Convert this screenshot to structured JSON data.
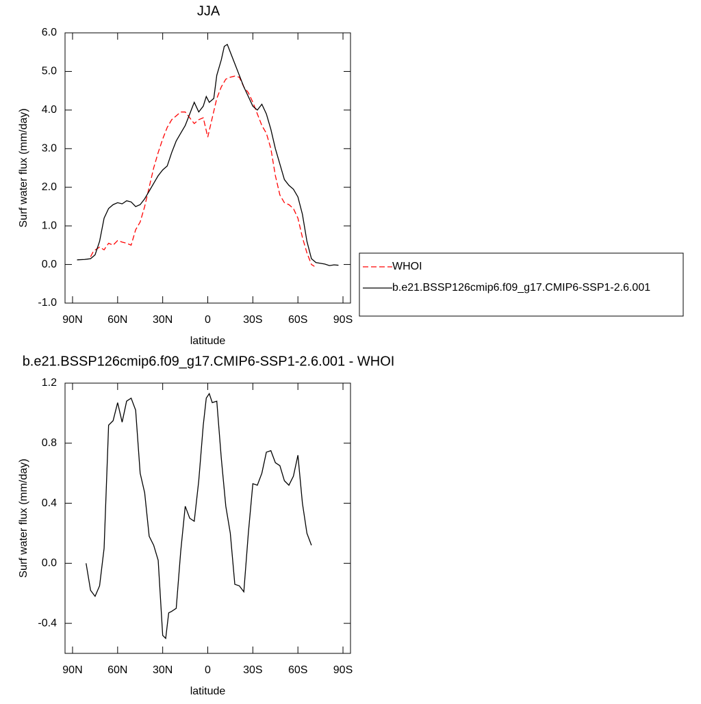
{
  "chart_data": [
    {
      "type": "line",
      "title": "JJA",
      "xlabel": "latitude",
      "ylabel": "Surf water flux (mm/day)",
      "xlim": [
        95,
        -95
      ],
      "ylim": [
        -1,
        6
      ],
      "xticks": [
        {
          "value": 90,
          "label": "90N"
        },
        {
          "value": 60,
          "label": "60N"
        },
        {
          "value": 30,
          "label": "30N"
        },
        0,
        {
          "value": -30,
          "label": "30S"
        },
        {
          "value": -60,
          "label": "60S"
        },
        {
          "value": -90,
          "label": "90S"
        }
      ],
      "yticks": [
        {
          "value": -1,
          "label": "-1.0"
        },
        {
          "value": 0,
          "label": "0.0"
        },
        {
          "value": 1,
          "label": "1.0"
        },
        {
          "value": 2,
          "label": "2.0"
        },
        {
          "value": 3,
          "label": "3.0"
        },
        {
          "value": 4,
          "label": "4.0"
        },
        {
          "value": 5,
          "label": "5.0"
        },
        {
          "value": 6,
          "label": "6.0"
        }
      ],
      "legend": "right",
      "series": [
        {
          "name": "WHOI",
          "color": "#ff0000",
          "dash": true,
          "x": [
            78,
            76,
            72,
            69,
            66,
            63,
            60,
            57,
            54,
            51,
            48,
            45,
            42,
            39,
            36,
            33,
            30,
            27,
            24,
            21,
            18,
            15,
            12,
            9,
            6,
            3,
            0,
            -3,
            -6,
            -9,
            -12,
            -15,
            -18,
            -21,
            -24,
            -27,
            -30,
            -33,
            -36,
            -39,
            -42,
            -45,
            -48,
            -51,
            -54,
            -57,
            -60,
            -63,
            -66,
            -69,
            -71
          ],
          "values": [
            0.2,
            0.35,
            0.45,
            0.38,
            0.55,
            0.5,
            0.62,
            0.58,
            0.55,
            0.5,
            0.9,
            1.1,
            1.5,
            2.0,
            2.5,
            2.9,
            3.25,
            3.55,
            3.75,
            3.85,
            3.95,
            3.95,
            3.8,
            3.65,
            3.75,
            3.8,
            3.3,
            3.8,
            4.3,
            4.6,
            4.8,
            4.85,
            4.88,
            4.85,
            4.6,
            4.45,
            4.2,
            3.9,
            3.6,
            3.4,
            3.0,
            2.3,
            1.8,
            1.6,
            1.55,
            1.45,
            1.2,
            0.7,
            0.3,
            0.0,
            -0.05
          ]
        },
        {
          "name": "b.e21.BSSP126cmip6.f09_g17.CMIP6-SSP1-2.6.001",
          "color": "#000000",
          "dash": false,
          "x": [
            87,
            82,
            78,
            75,
            72,
            69,
            66,
            63,
            60,
            57,
            54,
            51,
            48,
            45,
            42,
            39,
            36,
            33,
            30,
            27,
            24,
            21,
            18,
            15,
            12,
            9,
            6,
            3,
            1,
            -1,
            -4,
            -6,
            -9,
            -11,
            -13,
            -15,
            -18,
            -21,
            -24,
            -27,
            -30,
            -33,
            -36,
            -39,
            -42,
            -45,
            -48,
            -51,
            -54,
            -57,
            -60,
            -63,
            -66,
            -69,
            -72,
            -75,
            -78,
            -81,
            -84,
            -87
          ],
          "values": [
            0.12,
            0.13,
            0.15,
            0.25,
            0.6,
            1.2,
            1.45,
            1.55,
            1.6,
            1.57,
            1.65,
            1.62,
            1.5,
            1.55,
            1.7,
            1.9,
            2.1,
            2.3,
            2.45,
            2.55,
            2.9,
            3.2,
            3.4,
            3.6,
            3.9,
            4.2,
            3.95,
            4.1,
            4.35,
            4.2,
            4.3,
            4.9,
            5.3,
            5.65,
            5.7,
            5.5,
            5.2,
            4.9,
            4.6,
            4.35,
            4.1,
            4.0,
            4.15,
            3.9,
            3.5,
            3.0,
            2.6,
            2.2,
            2.05,
            1.95,
            1.75,
            1.3,
            0.6,
            0.15,
            0.05,
            0.03,
            0.01,
            -0.03,
            -0.01,
            -0.02
          ]
        }
      ]
    },
    {
      "type": "line",
      "title": "b.e21.BSSP126cmip6.f09_g17.CMIP6-SSP1-2.6.001 - WHOI",
      "xlabel": "latitude",
      "ylabel": "Surf water flux (mm/day)",
      "xlim": [
        95,
        -95
      ],
      "ylim": [
        -0.6,
        1.2
      ],
      "xticks": [
        {
          "value": 90,
          "label": "90N"
        },
        {
          "value": 60,
          "label": "60N"
        },
        {
          "value": 30,
          "label": "30N"
        },
        0,
        {
          "value": -30,
          "label": "30S"
        },
        {
          "value": -60,
          "label": "60S"
        },
        {
          "value": -90,
          "label": "90S"
        }
      ],
      "yticks": [
        -0.4,
        {
          "value": 0,
          "label": "0.0"
        },
        0.4,
        0.8,
        1.2
      ],
      "series": [
        {
          "color": "#000000",
          "dash": false,
          "x": [
            81,
            78,
            75,
            72,
            69,
            66,
            63,
            60,
            57,
            54,
            51,
            48,
            45,
            42,
            39,
            36,
            33,
            30,
            28,
            26,
            24,
            21,
            18,
            15,
            12,
            9,
            6,
            3,
            1,
            -1,
            -3,
            -6,
            -9,
            -12,
            -15,
            -18,
            -21,
            -24,
            -27,
            -30,
            -33,
            -36,
            -39,
            -42,
            -45,
            -48,
            -51,
            -54,
            -57,
            -60,
            -63,
            -66,
            -69
          ],
          "values": [
            0.0,
            -0.18,
            -0.22,
            -0.15,
            0.1,
            0.92,
            0.95,
            1.07,
            0.94,
            1.08,
            1.1,
            1.02,
            0.6,
            0.47,
            0.18,
            0.12,
            0.02,
            -0.48,
            -0.5,
            -0.33,
            -0.32,
            -0.3,
            0.08,
            0.38,
            0.3,
            0.28,
            0.55,
            0.92,
            1.1,
            1.13,
            1.07,
            1.08,
            0.7,
            0.38,
            0.2,
            -0.14,
            -0.15,
            -0.19,
            0.2,
            0.53,
            0.52,
            0.6,
            0.74,
            0.75,
            0.67,
            0.65,
            0.55,
            0.52,
            0.58,
            0.72,
            0.4,
            0.2,
            0.12
          ]
        }
      ]
    }
  ]
}
